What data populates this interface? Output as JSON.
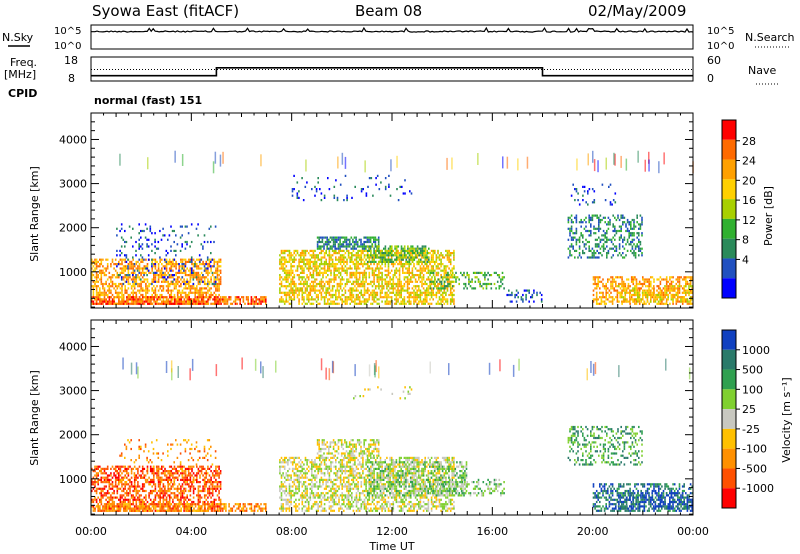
{
  "header": {
    "station": "Syowa East (fitACF)",
    "beam": "Beam 08",
    "date": "02/May/2009"
  },
  "strip_labels": {
    "nsky": "N.Sky",
    "nsearch": "N.Search",
    "freq": "Freq.",
    "mhz": "[MHz]",
    "nave": "Nave",
    "cpid": "CPID",
    "cpid_value": "normal (fast) 151"
  },
  "chart_data": [
    {
      "type": "line",
      "name": "noise-strip",
      "y_tick_labels": [
        "10^5",
        "10^0"
      ],
      "right_tick_labels": [
        "10^5",
        "10^0"
      ],
      "x": [
        0,
        24
      ]
    },
    {
      "type": "line",
      "name": "freq-nave-strip",
      "left_tick_labels": [
        "18",
        "8"
      ],
      "right_tick_labels": [
        "60",
        "0"
      ],
      "ylim": [
        8,
        18
      ],
      "freq_segments": [
        [
          0,
          5,
          10.2
        ],
        [
          5,
          18,
          13.5
        ],
        [
          18,
          24,
          10.2
        ]
      ],
      "nave_level": 12.8
    },
    {
      "type": "heatmap",
      "name": "power",
      "ylabel": "Slant Range [km]",
      "y_ticks": [
        1000,
        2000,
        3000,
        4000
      ],
      "ylim": [
        180,
        4600
      ],
      "xlim": [
        0,
        24
      ],
      "colorbar_label": "Power [dB]",
      "colorbar_ticks": [
        "28",
        "24",
        "20",
        "16",
        "12",
        "8",
        "4"
      ],
      "colorbar_colors": [
        "#ff0000",
        "#ff6a00",
        "#ffa000",
        "#ffd000",
        "#a8d000",
        "#30b030",
        "#2a8a5a",
        "#2050c0",
        "#0000ff"
      ]
    },
    {
      "type": "heatmap",
      "name": "velocity",
      "ylabel": "Slant Range [km]",
      "y_ticks": [
        1000,
        2000,
        3000,
        4000
      ],
      "ylim": [
        180,
        4600
      ],
      "xlim": [
        0,
        24
      ],
      "xlabel": "Time UT",
      "x_tick_labels": [
        "00:00",
        "04:00",
        "08:00",
        "12:00",
        "16:00",
        "20:00",
        "00:00"
      ],
      "colorbar_label": "Velocity [m s⁻¹]",
      "colorbar_ticks": [
        "1000",
        "500",
        "100",
        "25",
        "-25",
        "-100",
        "-500",
        "-1000"
      ],
      "colorbar_colors": [
        "#1040c0",
        "#2a7a6a",
        "#30a050",
        "#80d030",
        "#c8c8c0",
        "#ffc000",
        "#ff9000",
        "#ff5000",
        "#ff0000"
      ]
    }
  ]
}
